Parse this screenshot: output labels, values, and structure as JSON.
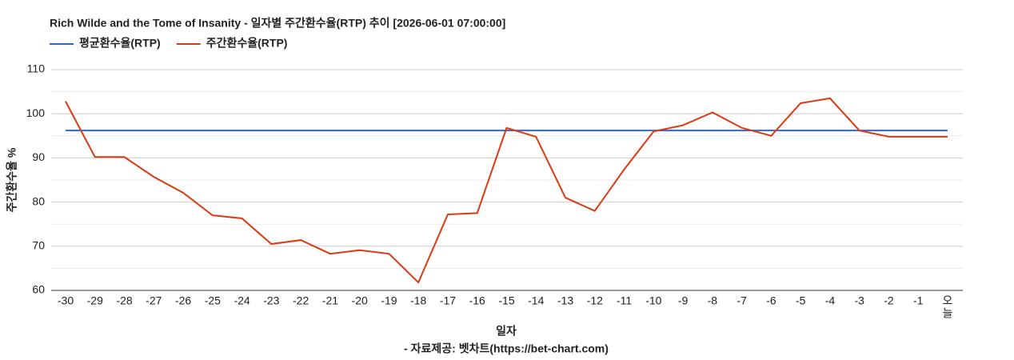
{
  "chart_data": {
    "type": "line",
    "title": "Rich Wilde and the Tome of Insanity - 일자별 주간환수율(RTP) 추이 [2026-06-01 07:00:00]",
    "x_label": "일자",
    "y_label": "주간환수율 %",
    "source": "- 자료제공: 벳차트(https://bet-chart.com)",
    "categories": [
      "-30",
      "-29",
      "-28",
      "-27",
      "-26",
      "-25",
      "-24",
      "-23",
      "-22",
      "-21",
      "-20",
      "-19",
      "-18",
      "-17",
      "-16",
      "-15",
      "-14",
      "-13",
      "-12",
      "-11",
      "-10",
      "-9",
      "-8",
      "-7",
      "-6",
      "-5",
      "-4",
      "-3",
      "-2",
      "-1",
      "오늘"
    ],
    "series": [
      {
        "name": "평균환수율(RTP)",
        "color": "#3366cc",
        "values": [
          96.2,
          96.2,
          96.2,
          96.2,
          96.2,
          96.2,
          96.2,
          96.2,
          96.2,
          96.2,
          96.2,
          96.2,
          96.2,
          96.2,
          96.2,
          96.2,
          96.2,
          96.2,
          96.2,
          96.2,
          96.2,
          96.2,
          96.2,
          96.2,
          96.2,
          96.2,
          96.2,
          96.2,
          96.2,
          96.2,
          96.2
        ]
      },
      {
        "name": "주간환수율(RTP)",
        "color": "#dc3912",
        "values": [
          102.8,
          90.2,
          90.2,
          85.7,
          82.1,
          77.0,
          76.3,
          70.5,
          71.4,
          68.3,
          69.1,
          68.3,
          61.8,
          77.2,
          77.5,
          96.8,
          94.8,
          81.0,
          78.0,
          87.4,
          96.0,
          97.4,
          100.3,
          96.8,
          95.0,
          102.4,
          103.5,
          96.2,
          94.8,
          94.8,
          94.8
        ]
      }
    ],
    "ylim": [
      60,
      110
    ],
    "yticks": [
      60,
      70,
      80,
      90,
      100,
      110
    ],
    "grid": true,
    "legend": "top-left"
  }
}
